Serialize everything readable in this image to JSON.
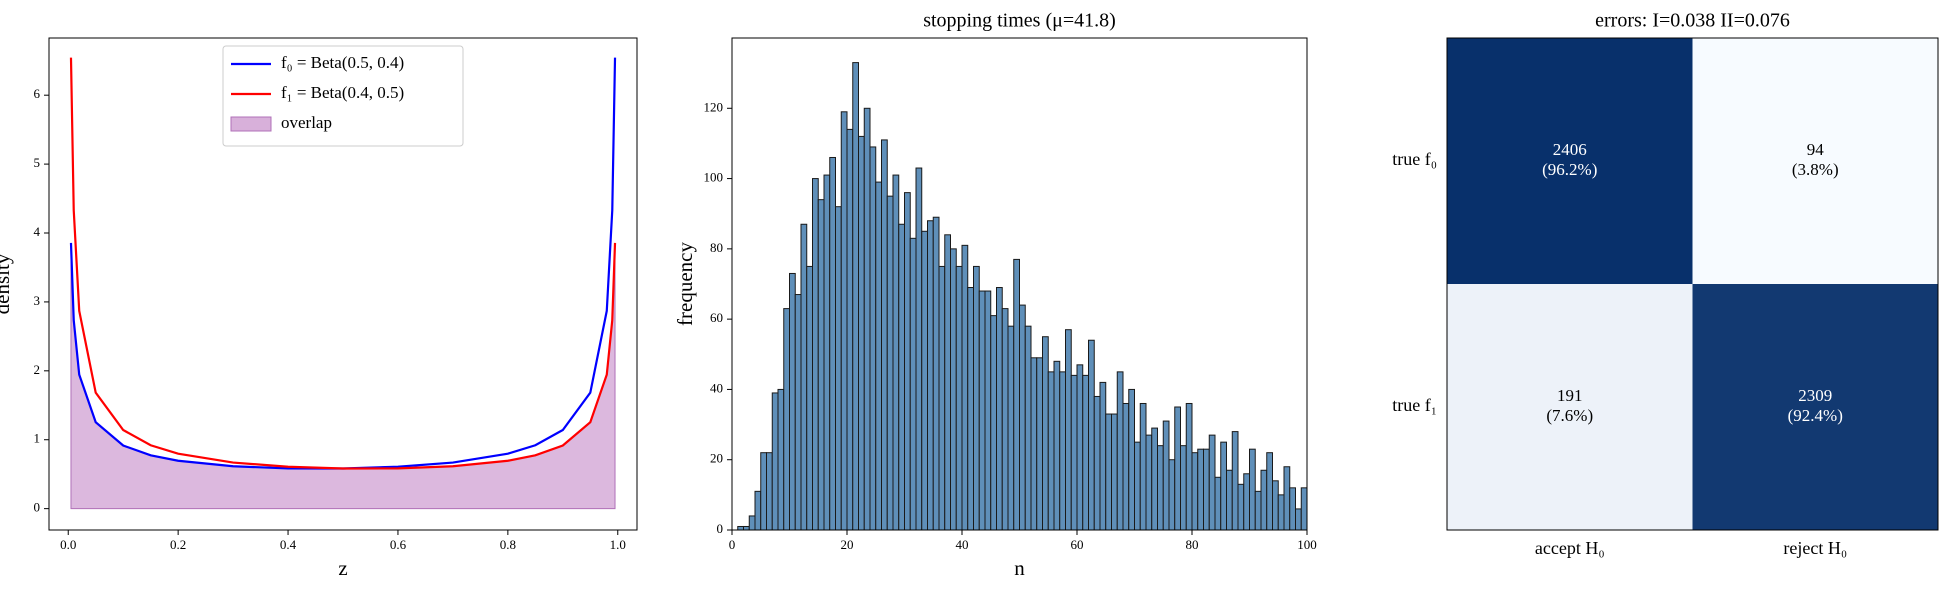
{
  "chart_data": [
    {
      "type": "line",
      "xlabel": "z",
      "ylabel": "density",
      "x": [
        0.005,
        0.01,
        0.02,
        0.05,
        0.1,
        0.15,
        0.2,
        0.3,
        0.4,
        0.5,
        0.6,
        0.7,
        0.8,
        0.85,
        0.9,
        0.95,
        0.98,
        0.99,
        0.995
      ],
      "series": [
        {
          "name": "f₀ = Beta(0.5, 0.4)",
          "color": "#0000ff",
          "values": [
            3.856,
            2.735,
            1.945,
            1.254,
            0.916,
            0.774,
            0.695,
            0.615,
            0.584,
            0.583,
            0.608,
            0.669,
            0.798,
            0.92,
            1.141,
            1.683,
            2.871,
            4.33,
            6.545
          ]
        },
        {
          "name": "f₁ = Beta(0.4, 0.5)",
          "color": "#ff0000",
          "values": [
            6.545,
            4.33,
            2.871,
            1.683,
            1.141,
            0.92,
            0.798,
            0.669,
            0.608,
            0.583,
            0.584,
            0.615,
            0.695,
            0.774,
            0.916,
            1.254,
            1.945,
            2.735,
            3.856
          ]
        },
        {
          "name": "overlap",
          "color": "#d8b0da",
          "kind": "area",
          "values": [
            3.856,
            2.735,
            1.945,
            1.254,
            0.916,
            0.774,
            0.695,
            0.615,
            0.584,
            0.583,
            0.584,
            0.615,
            0.695,
            0.774,
            0.916,
            1.254,
            1.945,
            2.735,
            3.856
          ]
        }
      ],
      "xlim": [
        -0.035,
        1.035
      ],
      "ylim": [
        -0.31,
        6.83
      ],
      "xticks": [
        {
          "value": 0,
          "label": "0.0"
        },
        0.2,
        0.4,
        0.6,
        0.8,
        {
          "value": 1,
          "label": "1.0"
        }
      ],
      "yticks": [
        0,
        1,
        2,
        3,
        4,
        5,
        6
      ],
      "legend": "upper center"
    },
    {
      "type": "histogram",
      "title": "stopping times (μ=41.8)",
      "xlabel": "n",
      "ylabel": "frequency",
      "color": "#5f8fb9",
      "bins": [
        1,
        2,
        3,
        4,
        5,
        6,
        7,
        8,
        9,
        10,
        11,
        12,
        13,
        14,
        15,
        16,
        17,
        18,
        19,
        20,
        21,
        22,
        23,
        24,
        25,
        26,
        27,
        28,
        29,
        30,
        31,
        32,
        33,
        34,
        35,
        36,
        37,
        38,
        39,
        40,
        41,
        42,
        43,
        44,
        45,
        46,
        47,
        48,
        49,
        50,
        51,
        52,
        53,
        54,
        55,
        56,
        57,
        58,
        59,
        60,
        61,
        62,
        63,
        64,
        65,
        66,
        67,
        68,
        69,
        70,
        71,
        72,
        73,
        74,
        75,
        76,
        77,
        78,
        79,
        80,
        81,
        82,
        83,
        84,
        85,
        86,
        87,
        88,
        89,
        90,
        91,
        92,
        93,
        94,
        95,
        96,
        97,
        98,
        99,
        100
      ],
      "counts": [
        1,
        1,
        4,
        11,
        22,
        22,
        39,
        40,
        63,
        73,
        67,
        87,
        75,
        100,
        94,
        101,
        106,
        92,
        119,
        114,
        133,
        112,
        120,
        109,
        99,
        111,
        95,
        101,
        87,
        96,
        83,
        103,
        85,
        88,
        89,
        75,
        84,
        80,
        75,
        81,
        69,
        75,
        68,
        68,
        61,
        69,
        63,
        58,
        77,
        64,
        58,
        49,
        49,
        55,
        45,
        48,
        45,
        57,
        44,
        47,
        44,
        54,
        38,
        42,
        33,
        33,
        45,
        36,
        40,
        25,
        36,
        27,
        29,
        24,
        31,
        20,
        35,
        24,
        36,
        22,
        23,
        23,
        27,
        15,
        25,
        17,
        28,
        13,
        16,
        23,
        11,
        17,
        22,
        14,
        10,
        18,
        12,
        6,
        12
      ],
      "xlim": [
        0,
        100
      ],
      "ylim": [
        0,
        140
      ],
      "xticks": [
        0,
        20,
        40,
        60,
        80,
        100
      ],
      "yticks": [
        0,
        20,
        40,
        60,
        80,
        100,
        120
      ]
    },
    {
      "type": "heatmap",
      "title": "errors: I=0.038 II=0.076",
      "rows": [
        "true f₀",
        "true f₁"
      ],
      "columns": [
        "accept H₀",
        "reject H₀"
      ],
      "values": [
        [
          2406,
          94
        ],
        [
          191,
          2309
        ]
      ],
      "percent_labels": [
        [
          "(96.2%)",
          "(3.8%)"
        ],
        [
          "(7.6%)",
          "(92.4%)"
        ]
      ],
      "colors": [
        "#f7fbff",
        "#08306b"
      ]
    }
  ]
}
